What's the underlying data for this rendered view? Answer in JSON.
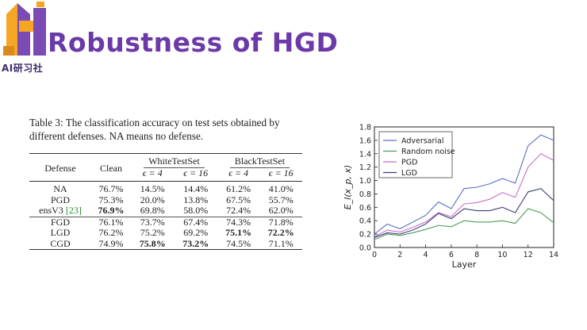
{
  "slide": {
    "title": "Robustness of HGD",
    "logo_text": "AI研习社"
  },
  "table": {
    "caption": "Table 3: The classification accuracy on test sets obtained by different defenses. NA means no defense.",
    "headers": {
      "defense": "Defense",
      "clean": "Clean",
      "white": "WhiteTestSet",
      "black": "BlackTestSet",
      "eps4": "ϵ = 4",
      "eps16": "ϵ = 16"
    },
    "rows": [
      {
        "defense": "NA",
        "clean": "76.7%",
        "w4": "14.5%",
        "w16": "14.4%",
        "b4": "61.2%",
        "b16": "41.0%"
      },
      {
        "defense": "PGD",
        "clean": "75.3%",
        "w4": "20.0%",
        "w16": "13.8%",
        "b4": "67.5%",
        "b16": "55.7%"
      },
      {
        "defense": "ensV3",
        "cite": "[23]",
        "clean": "76.9%",
        "w4": "69.8%",
        "w16": "58.0%",
        "b4": "72.4%",
        "b16": "62.0%"
      },
      {
        "defense": "FGD",
        "clean": "76.1%",
        "w4": "73.7%",
        "w16": "67.4%",
        "b4": "74.3%",
        "b16": "71.8%"
      },
      {
        "defense": "LGD",
        "clean": "76.2%",
        "w4": "75.2%",
        "w16": "69.2%",
        "b4": "75.1%",
        "b16": "72.2%"
      },
      {
        "defense": "CGD",
        "clean": "74.9%",
        "w4": "75.8%",
        "w16": "73.2%",
        "b4": "74.5%",
        "b16": "71.1%"
      }
    ]
  },
  "chart_data": {
    "type": "line",
    "xlabel": "Layer",
    "ylabel": "E_l(x_p, x)",
    "xlim": [
      0,
      14
    ],
    "ylim": [
      0,
      1.8
    ],
    "xticks": [
      "0",
      "2",
      "4",
      "6",
      "8",
      "10",
      "12",
      "14"
    ],
    "yticks": [
      "0.0",
      "0.2",
      "0.4",
      "0.6",
      "0.8",
      "1.0",
      "1.2",
      "1.4",
      "1.6",
      "1.8"
    ],
    "legend_position": "top-left",
    "grid": false,
    "x": [
      0,
      1,
      2,
      3,
      4,
      5,
      6,
      7,
      8,
      9,
      10,
      11,
      12,
      13,
      14
    ],
    "series": [
      {
        "name": "Adversarial",
        "color": "#5a6fc0",
        "values": [
          0.2,
          0.35,
          0.28,
          0.38,
          0.48,
          0.68,
          0.58,
          0.88,
          0.9,
          0.95,
          1.03,
          0.96,
          1.52,
          1.68,
          1.6
        ]
      },
      {
        "name": "Random noise",
        "color": "#4c9a5a",
        "values": [
          0.12,
          0.2,
          0.18,
          0.22,
          0.27,
          0.33,
          0.31,
          0.4,
          0.38,
          0.38,
          0.4,
          0.36,
          0.58,
          0.52,
          0.37
        ]
      },
      {
        "name": "PGD",
        "color": "#c86ec8",
        "values": [
          0.16,
          0.26,
          0.23,
          0.3,
          0.38,
          0.52,
          0.46,
          0.65,
          0.67,
          0.72,
          0.82,
          0.75,
          1.2,
          1.4,
          1.3
        ]
      },
      {
        "name": "LGD",
        "color": "#3a3f78",
        "values": [
          0.15,
          0.22,
          0.2,
          0.26,
          0.35,
          0.51,
          0.43,
          0.58,
          0.55,
          0.55,
          0.6,
          0.52,
          0.83,
          0.88,
          0.7
        ]
      }
    ]
  }
}
